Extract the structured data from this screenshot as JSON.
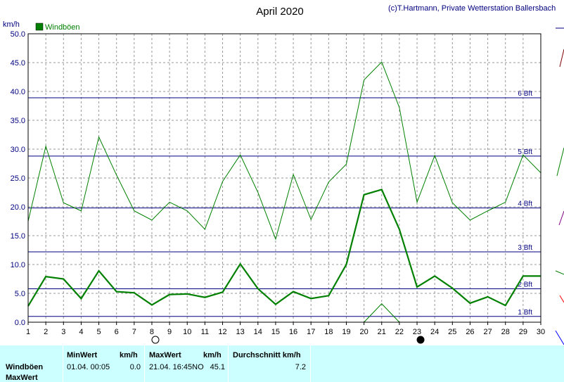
{
  "header": {
    "title": "April 2020",
    "credit": "(c)T.Hartmann, Private Wetterstation Ballersbach",
    "unit": "km/h"
  },
  "chart_data": {
    "type": "line",
    "title": "April 2020",
    "ylabel": "km/h",
    "ylim": [
      0,
      50
    ],
    "yticks": [
      "0.0",
      "5.0",
      "10.0",
      "15.0",
      "20.0",
      "25.0",
      "30.0",
      "35.0",
      "40.0",
      "45.0",
      "50.0"
    ],
    "xlim": [
      1,
      30
    ],
    "xticks": [
      "1",
      "2",
      "3",
      "4",
      "5",
      "6",
      "7",
      "8",
      "9",
      "10",
      "11",
      "12",
      "13",
      "14",
      "15",
      "16",
      "17",
      "18",
      "19",
      "20",
      "21",
      "22",
      "23",
      "24",
      "25",
      "26",
      "27",
      "28",
      "29",
      "30"
    ],
    "legend": {
      "label": "Windböen",
      "color": "#008000",
      "position": "top-left"
    },
    "beaufort_lines": [
      {
        "label": "1 Bft",
        "value": 1.0
      },
      {
        "label": "2 Bft",
        "value": 5.8
      },
      {
        "label": "3 Bft",
        "value": 12.2
      },
      {
        "label": "4 Bft",
        "value": 19.8
      },
      {
        "label": "5 Bft",
        "value": 28.8
      },
      {
        "label": "6 Bft",
        "value": 38.9
      }
    ],
    "series": [
      {
        "name": "Windböen",
        "style": "thick",
        "color": "#008000",
        "x": [
          1,
          2,
          3,
          4,
          5,
          6,
          7,
          8,
          9,
          10,
          11,
          12,
          13,
          14,
          15,
          16,
          17,
          18,
          19,
          20,
          21,
          22,
          23,
          24,
          25,
          26,
          27,
          28,
          29,
          30
        ],
        "values": [
          2.8,
          7.9,
          7.5,
          4.1,
          8.9,
          5.3,
          5.1,
          3.0,
          4.8,
          4.9,
          4.3,
          5.2,
          10.1,
          5.8,
          3.1,
          5.3,
          4.1,
          4.6,
          10.0,
          22.1,
          23.0,
          16.1,
          6.1,
          8.0,
          5.9,
          3.3,
          4.4,
          2.9,
          8.0,
          8.0
        ]
      },
      {
        "name": "MaxWert",
        "style": "thin",
        "color": "#008000",
        "x": [
          1,
          2,
          3,
          4,
          5,
          6,
          7,
          8,
          9,
          10,
          11,
          12,
          13,
          14,
          15,
          16,
          17,
          18,
          19,
          20,
          21,
          22,
          23,
          24,
          25,
          26,
          27,
          28,
          29,
          30
        ],
        "values": [
          17.5,
          30.5,
          20.7,
          19.3,
          32.1,
          25.5,
          19.3,
          17.7,
          20.8,
          19.3,
          16.1,
          24.4,
          29.0,
          22.5,
          14.4,
          25.6,
          17.8,
          24.3,
          27.4,
          42.0,
          45.1,
          37.2,
          20.8,
          28.9,
          20.7,
          17.7,
          19.3,
          20.8,
          29.0,
          25.9
        ]
      },
      {
        "name": "",
        "style": "thin",
        "color": "#008000",
        "x": [
          20,
          21,
          22
        ],
        "values": [
          0.0,
          3.2,
          0.0
        ]
      }
    ],
    "moon_markers": [
      {
        "day": 8,
        "phase": "full"
      },
      {
        "day": 23,
        "phase": "new"
      }
    ]
  },
  "footer": {
    "row_labels": [
      "Windböen",
      "MaxWert"
    ],
    "min": {
      "header": "MinWert",
      "unit": "km/h",
      "date": "01.04.  00:05",
      "value": "0.0"
    },
    "max": {
      "header": "MaxWert",
      "unit": "km/h",
      "date": "21.04.  16:45NO",
      "value": "45.1"
    },
    "avg": {
      "header": "Durchschnitt km/h",
      "value": "7.2"
    }
  }
}
